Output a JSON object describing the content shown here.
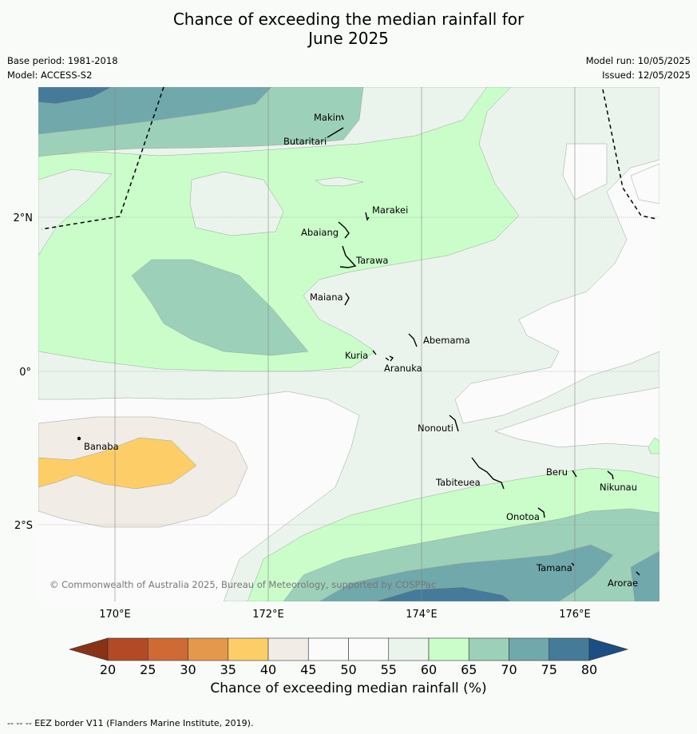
{
  "title_line1": "Chance of exceeding the median rainfall for",
  "title_line2": "June 2025",
  "base_period": "Base period: 1981-2018",
  "model": "Model: ACCESS-S2",
  "model_run": "Model run: 10/05/2025",
  "issued": "Issued: 12/05/2025",
  "copyright": "© Commonwealth of Australia 2025, Bureau of Meteorology, supported by COSPPac",
  "axes": {
    "lon_ticks": [
      "170°E",
      "172°E",
      "174°E",
      "176°E"
    ],
    "lat_ticks": [
      "2°N",
      "0°",
      "2°S"
    ]
  },
  "places": [
    {
      "name": "Makin"
    },
    {
      "name": "Butaritari"
    },
    {
      "name": "Marakei"
    },
    {
      "name": "Abaiang"
    },
    {
      "name": "Tarawa"
    },
    {
      "name": "Maiana"
    },
    {
      "name": "Abemama"
    },
    {
      "name": "Kuria"
    },
    {
      "name": "Aranuka"
    },
    {
      "name": "Nonouti"
    },
    {
      "name": "Banaba"
    },
    {
      "name": "Tabiteuea"
    },
    {
      "name": "Beru"
    },
    {
      "name": "Nikunau"
    },
    {
      "name": "Onotoa"
    },
    {
      "name": "Tamana"
    },
    {
      "name": "Arorae"
    }
  ],
  "colorbar": {
    "title": "Chance of exceeding median rainfall (%)",
    "ticks": [
      "20",
      "25",
      "30",
      "35",
      "40",
      "45",
      "50",
      "55",
      "60",
      "65",
      "70",
      "75",
      "80"
    ],
    "colors": [
      "#b34a26",
      "#cf6a35",
      "#e4984c",
      "#fdcd67",
      "#f1ece6",
      "#fbfbfb",
      "#fbfbfb",
      "#ebf4ec",
      "#cafdca",
      "#9dd0b9",
      "#70a8ac",
      "#467a99"
    ],
    "under_color": "#8a3216",
    "over_color": "#1c4d84"
  },
  "legend_note": "--  --  -- EEZ border V11 (Flanders Marine Institute, 2019)."
}
